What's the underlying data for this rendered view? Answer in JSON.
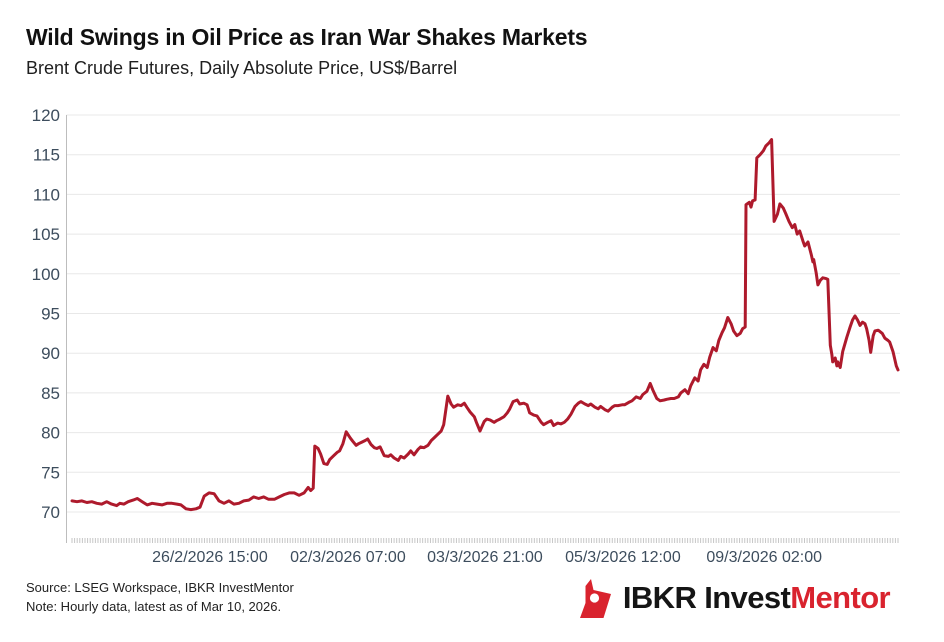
{
  "header": {
    "title": "Wild Swings in Oil Price as Iran War Shakes Markets",
    "subtitle": "Brent Crude Futures, Daily Absolute Price, US$/Barrel"
  },
  "footer": {
    "source_line1": "Source: LSEG Workspace, IBKR InvestMentor",
    "source_line2": "Note: Hourly data, latest as of Mar 10, 2026.",
    "logo_text_black": "IBKR Invest",
    "logo_text_red": "Mentor"
  },
  "colors": {
    "line": "#ae1a2c",
    "grid": "#e8e8e8",
    "axis": "#bdbdbd",
    "minor_tick": "#c6c6c6",
    "axis_label": "#3d4d5d",
    "logo_red": "#d9232e",
    "title_text": "#111111"
  },
  "chart_data": {
    "type": "line",
    "title": "Wild Swings in Oil Price as Iran War Shakes Markets",
    "subtitle": "Brent Crude Futures, Daily Absolute Price, US$/Barrel",
    "xlabel": "",
    "ylabel": "US$/Barrel",
    "series_name": "Brent Crude Futures (hourly)",
    "ylim": [
      67,
      120.6
    ],
    "grid": "horizontal",
    "legend": "none",
    "y_ticks": [
      70,
      75,
      80,
      85,
      90,
      95,
      100,
      105,
      110,
      115,
      120
    ],
    "x_ticks": [
      {
        "label": "26/2/2026 15:00",
        "f": 0.167
      },
      {
        "label": "02/3/2026 07:00",
        "f": 0.334
      },
      {
        "label": "03/3/2026 21:00",
        "f": 0.5
      },
      {
        "label": "05/3/2026 12:00",
        "f": 0.667
      },
      {
        "label": "09/3/2026 02:00",
        "f": 0.838
      }
    ],
    "minor_tick_count": 318,
    "points": [
      [
        0,
        71.4
      ],
      [
        0.006,
        71.3
      ],
      [
        0.012,
        71.4
      ],
      [
        0.018,
        71.2
      ],
      [
        0.024,
        71.3
      ],
      [
        0.03,
        71.1
      ],
      [
        0.036,
        71.0
      ],
      [
        0.042,
        71.3
      ],
      [
        0.048,
        71.0
      ],
      [
        0.054,
        70.8
      ],
      [
        0.058,
        71.1
      ],
      [
        0.063,
        71.0
      ],
      [
        0.068,
        71.3
      ],
      [
        0.074,
        71.5
      ],
      [
        0.079,
        71.7
      ],
      [
        0.085,
        71.3
      ],
      [
        0.091,
        70.9
      ],
      [
        0.097,
        71.1
      ],
      [
        0.103,
        71.0
      ],
      [
        0.109,
        70.9
      ],
      [
        0.115,
        71.1
      ],
      [
        0.121,
        71.1
      ],
      [
        0.127,
        71.0
      ],
      [
        0.132,
        70.9
      ],
      [
        0.138,
        70.4
      ],
      [
        0.144,
        70.3
      ],
      [
        0.15,
        70.4
      ],
      [
        0.155,
        70.6
      ],
      [
        0.16,
        72.0
      ],
      [
        0.166,
        72.4
      ],
      [
        0.172,
        72.3
      ],
      [
        0.178,
        71.4
      ],
      [
        0.184,
        71.1
      ],
      [
        0.19,
        71.4
      ],
      [
        0.196,
        71.0
      ],
      [
        0.202,
        71.1
      ],
      [
        0.208,
        71.4
      ],
      [
        0.214,
        71.5
      ],
      [
        0.22,
        71.9
      ],
      [
        0.226,
        71.7
      ],
      [
        0.232,
        71.9
      ],
      [
        0.238,
        71.6
      ],
      [
        0.245,
        71.6
      ],
      [
        0.251,
        71.9
      ],
      [
        0.257,
        72.2
      ],
      [
        0.263,
        72.4
      ],
      [
        0.269,
        72.4
      ],
      [
        0.275,
        72.1
      ],
      [
        0.281,
        72.4
      ],
      [
        0.286,
        73.1
      ],
      [
        0.289,
        72.7
      ],
      [
        0.292,
        73.0
      ],
      [
        0.294,
        78.3
      ],
      [
        0.298,
        78.0
      ],
      [
        0.301,
        77.3
      ],
      [
        0.305,
        76.1
      ],
      [
        0.309,
        76.0
      ],
      [
        0.312,
        76.6
      ],
      [
        0.317,
        77.1
      ],
      [
        0.321,
        77.5
      ],
      [
        0.324,
        77.7
      ],
      [
        0.328,
        78.6
      ],
      [
        0.332,
        80.1
      ],
      [
        0.337,
        79.3
      ],
      [
        0.34,
        78.9
      ],
      [
        0.344,
        78.4
      ],
      [
        0.347,
        78.6
      ],
      [
        0.351,
        78.8
      ],
      [
        0.355,
        79.0
      ],
      [
        0.358,
        79.2
      ],
      [
        0.362,
        78.5
      ],
      [
        0.366,
        78.1
      ],
      [
        0.369,
        78.0
      ],
      [
        0.373,
        78.2
      ],
      [
        0.378,
        77.1
      ],
      [
        0.383,
        77.0
      ],
      [
        0.386,
        77.2
      ],
      [
        0.39,
        76.8
      ],
      [
        0.395,
        76.5
      ],
      [
        0.398,
        77.0
      ],
      [
        0.402,
        76.8
      ],
      [
        0.407,
        77.3
      ],
      [
        0.41,
        77.7
      ],
      [
        0.414,
        77.2
      ],
      [
        0.419,
        77.9
      ],
      [
        0.422,
        78.2
      ],
      [
        0.426,
        78.1
      ],
      [
        0.431,
        78.4
      ],
      [
        0.435,
        79.0
      ],
      [
        0.439,
        79.4
      ],
      [
        0.443,
        79.8
      ],
      [
        0.447,
        80.2
      ],
      [
        0.45,
        81.0
      ],
      [
        0.455,
        84.6
      ],
      [
        0.459,
        83.6
      ],
      [
        0.462,
        83.2
      ],
      [
        0.467,
        83.5
      ],
      [
        0.471,
        83.4
      ],
      [
        0.475,
        83.7
      ],
      [
        0.478,
        83.2
      ],
      [
        0.482,
        82.6
      ],
      [
        0.487,
        82.0
      ],
      [
        0.49,
        81.2
      ],
      [
        0.494,
        80.2
      ],
      [
        0.499,
        81.4
      ],
      [
        0.502,
        81.7
      ],
      [
        0.506,
        81.6
      ],
      [
        0.511,
        81.3
      ],
      [
        0.514,
        81.5
      ],
      [
        0.518,
        81.7
      ],
      [
        0.523,
        82.0
      ],
      [
        0.527,
        82.5
      ],
      [
        0.53,
        83.0
      ],
      [
        0.534,
        83.9
      ],
      [
        0.539,
        84.1
      ],
      [
        0.542,
        83.6
      ],
      [
        0.547,
        83.7
      ],
      [
        0.551,
        83.5
      ],
      [
        0.554,
        82.5
      ],
      [
        0.559,
        82.2
      ],
      [
        0.563,
        82.1
      ],
      [
        0.568,
        81.3
      ],
      [
        0.571,
        81.0
      ],
      [
        0.576,
        81.3
      ],
      [
        0.58,
        81.5
      ],
      [
        0.583,
        80.9
      ],
      [
        0.588,
        81.2
      ],
      [
        0.592,
        81.1
      ],
      [
        0.596,
        81.3
      ],
      [
        0.6,
        81.7
      ],
      [
        0.604,
        82.3
      ],
      [
        0.609,
        83.3
      ],
      [
        0.613,
        83.7
      ],
      [
        0.616,
        83.9
      ],
      [
        0.621,
        83.6
      ],
      [
        0.625,
        83.4
      ],
      [
        0.628,
        83.6
      ],
      [
        0.633,
        83.2
      ],
      [
        0.637,
        83.0
      ],
      [
        0.64,
        83.3
      ],
      [
        0.645,
        82.9
      ],
      [
        0.649,
        82.7
      ],
      [
        0.654,
        83.2
      ],
      [
        0.657,
        83.4
      ],
      [
        0.661,
        83.4
      ],
      [
        0.666,
        83.5
      ],
      [
        0.669,
        83.5
      ],
      [
        0.674,
        83.8
      ],
      [
        0.678,
        84.0
      ],
      [
        0.683,
        84.5
      ],
      [
        0.688,
        84.3
      ],
      [
        0.691,
        84.8
      ],
      [
        0.696,
        85.2
      ],
      [
        0.7,
        86.2
      ],
      [
        0.703,
        85.4
      ],
      [
        0.708,
        84.3
      ],
      [
        0.712,
        84.0
      ],
      [
        0.717,
        84.1
      ],
      [
        0.72,
        84.2
      ],
      [
        0.725,
        84.3
      ],
      [
        0.729,
        84.3
      ],
      [
        0.734,
        84.5
      ],
      [
        0.737,
        85.0
      ],
      [
        0.742,
        85.4
      ],
      [
        0.746,
        84.9
      ],
      [
        0.749,
        85.9
      ],
      [
        0.754,
        86.9
      ],
      [
        0.758,
        86.5
      ],
      [
        0.761,
        87.9
      ],
      [
        0.765,
        88.6
      ],
      [
        0.769,
        88.2
      ],
      [
        0.772,
        89.5
      ],
      [
        0.776,
        90.7
      ],
      [
        0.78,
        90.3
      ],
      [
        0.783,
        91.6
      ],
      [
        0.787,
        92.6
      ],
      [
        0.79,
        93.2
      ],
      [
        0.794,
        94.5
      ],
      [
        0.798,
        93.7
      ],
      [
        0.801,
        92.8
      ],
      [
        0.805,
        92.2
      ],
      [
        0.809,
        92.5
      ],
      [
        0.812,
        93.1
      ],
      [
        0.815,
        93.3
      ],
      [
        0.816,
        108.7
      ],
      [
        0.82,
        109.0
      ],
      [
        0.822,
        108.4
      ],
      [
        0.824,
        109.2
      ],
      [
        0.827,
        109.3
      ],
      [
        0.829,
        114.6
      ],
      [
        0.833,
        115.0
      ],
      [
        0.837,
        115.5
      ],
      [
        0.84,
        116.1
      ],
      [
        0.844,
        116.5
      ],
      [
        0.847,
        116.9
      ],
      [
        0.85,
        106.6
      ],
      [
        0.854,
        107.5
      ],
      [
        0.857,
        108.8
      ],
      [
        0.861,
        108.3
      ],
      [
        0.864,
        107.6
      ],
      [
        0.868,
        106.6
      ],
      [
        0.872,
        105.8
      ],
      [
        0.875,
        106.2
      ],
      [
        0.878,
        105.0
      ],
      [
        0.881,
        105.4
      ],
      [
        0.885,
        104.1
      ],
      [
        0.887,
        103.5
      ],
      [
        0.891,
        104.0
      ],
      [
        0.895,
        102.4
      ],
      [
        0.897,
        101.5
      ],
      [
        0.898,
        101.8
      ],
      [
        0.901,
        100.1
      ],
      [
        0.903,
        98.6
      ],
      [
        0.906,
        99.2
      ],
      [
        0.909,
        99.5
      ],
      [
        0.913,
        99.4
      ],
      [
        0.915,
        99.3
      ],
      [
        0.918,
        91.0
      ],
      [
        0.92,
        89.8
      ],
      [
        0.921,
        88.9
      ],
      [
        0.924,
        89.4
      ],
      [
        0.926,
        88.4
      ],
      [
        0.927,
        88.9
      ],
      [
        0.93,
        88.2
      ],
      [
        0.933,
        90.2
      ],
      [
        0.938,
        92.0
      ],
      [
        0.942,
        93.3
      ],
      [
        0.945,
        94.2
      ],
      [
        0.948,
        94.7
      ],
      [
        0.951,
        94.2
      ],
      [
        0.954,
        93.5
      ],
      [
        0.957,
        93.9
      ],
      [
        0.96,
        93.7
      ],
      [
        0.962,
        93.1
      ],
      [
        0.965,
        91.6
      ],
      [
        0.967,
        90.1
      ],
      [
        0.97,
        92.2
      ],
      [
        0.972,
        92.8
      ],
      [
        0.976,
        92.9
      ],
      [
        0.981,
        92.5
      ],
      [
        0.984,
        91.9
      ],
      [
        0.988,
        91.6
      ],
      [
        0.99,
        91.4
      ],
      [
        0.994,
        90.2
      ],
      [
        0.998,
        88.4
      ],
      [
        1,
        87.9
      ]
    ]
  }
}
